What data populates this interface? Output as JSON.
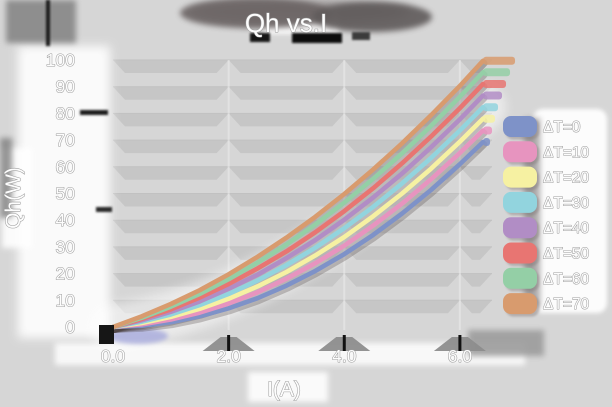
{
  "colors": {
    "background": "#d6d6d6",
    "grid_band": "#c2c2c2",
    "text_fill": "#ffffff",
    "text_outline": "#9a9a9a",
    "shadow_smudge": "#6a6464"
  },
  "chart_data": {
    "type": "line",
    "title": "Qh vs.I",
    "xlabel": "I(A)",
    "ylabel": "Qh(W)",
    "xlim": [
      0,
      6.78
    ],
    "ylim": [
      0,
      100
    ],
    "grid": true,
    "legend_position": "right",
    "x_ticks": {
      "labels": [
        "0.0",
        "2.0",
        "4.0",
        "6.0"
      ],
      "values": [
        0,
        2,
        4,
        6
      ]
    },
    "y_ticks": {
      "labels": [
        "0",
        "10",
        "20",
        "30",
        "40",
        "50",
        "60",
        "70",
        "80",
        "90",
        "100"
      ],
      "values": [
        0,
        10,
        20,
        30,
        40,
        50,
        60,
        70,
        80,
        90,
        100
      ]
    },
    "x": [
      0,
      0.5,
      1,
      1.5,
      2,
      2.5,
      3,
      3.5,
      4,
      4.5,
      5,
      5.5,
      6,
      6.4
    ],
    "series": [
      {
        "name": "ΔT=0",
        "color": "#7e92c8",
        "values": [
          0,
          0.5,
          1.8,
          4.0,
          7.0,
          10.8,
          15.5,
          21.0,
          27.3,
          34.5,
          42.5,
          51.3,
          61.0,
          69.3
        ]
      },
      {
        "name": "ΔT=10",
        "color": "#e794bf",
        "values": [
          0,
          1.0,
          2.8,
          5.4,
          8.8,
          13.0,
          18.1,
          23.9,
          30.5,
          38.0,
          46.2,
          55.3,
          65.2,
          73.6
        ]
      },
      {
        "name": "ΔT=20",
        "color": "#f6f1a2",
        "values": [
          0,
          1.5,
          3.8,
          6.8,
          10.6,
          15.2,
          20.6,
          26.8,
          33.7,
          41.5,
          50.0,
          59.3,
          69.4,
          78.0
        ]
      },
      {
        "name": "ΔT=30",
        "color": "#92d4de",
        "values": [
          0,
          2.0,
          4.7,
          8.2,
          12.4,
          17.4,
          23.2,
          29.7,
          37.0,
          45.0,
          53.8,
          63.3,
          73.6,
          82.3
        ]
      },
      {
        "name": "ΔT=40",
        "color": "#b18dc5",
        "values": [
          0,
          2.5,
          5.7,
          9.6,
          14.3,
          19.6,
          25.8,
          32.6,
          40.2,
          48.5,
          57.5,
          67.3,
          77.8,
          86.7
        ]
      },
      {
        "name": "ΔT=50",
        "color": "#e87572",
        "values": [
          0,
          3.0,
          6.6,
          11.0,
          16.1,
          21.9,
          28.3,
          35.5,
          43.4,
          52.0,
          61.3,
          71.3,
          82.0,
          91.0
        ]
      },
      {
        "name": "ΔT=60",
        "color": "#94cfa6",
        "values": [
          0,
          3.5,
          7.6,
          12.4,
          17.9,
          24.1,
          30.9,
          38.4,
          46.6,
          55.5,
          65.0,
          75.3,
          86.2,
          95.4
        ]
      },
      {
        "name": "ΔT=70",
        "color": "#d89b6e",
        "values": [
          0,
          4.0,
          8.6,
          13.8,
          19.7,
          26.3,
          33.5,
          41.3,
          49.8,
          59.0,
          68.8,
          79.3,
          90.3,
          99.7
        ]
      }
    ]
  }
}
